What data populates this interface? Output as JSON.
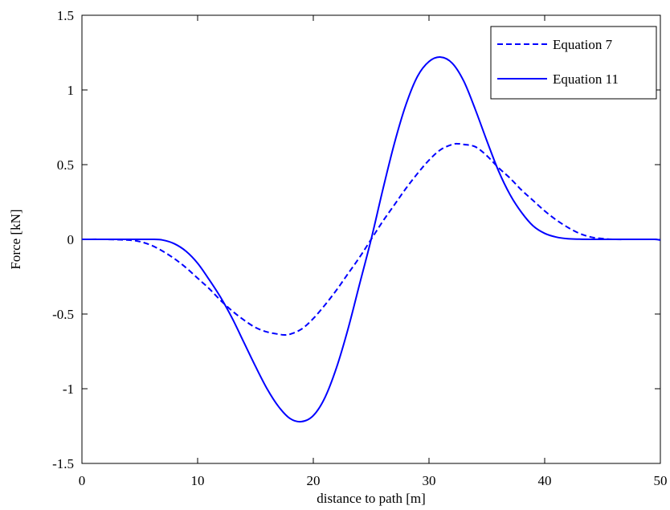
{
  "chart_data": {
    "type": "line",
    "title": "",
    "xlabel": "distance to path [m]",
    "ylabel": "Force [kN]",
    "xlim": [
      0,
      50
    ],
    "ylim": [
      -1.5,
      1.5
    ],
    "x_ticks": [
      0,
      10,
      20,
      30,
      40,
      50
    ],
    "x_tick_labels": [
      "0",
      "10",
      "20",
      "30",
      "40",
      "50"
    ],
    "y_ticks": [
      -1.5,
      -1,
      -0.5,
      0,
      0.5,
      1,
      1.5
    ],
    "y_tick_labels": [
      "-1.5",
      "-1",
      "-0.5",
      "0",
      "0.5",
      "1",
      "1.5"
    ],
    "grid": false,
    "legend_position": "top-right",
    "series_color": "#0000ff",
    "series": [
      {
        "name": "Equation 7",
        "style": "dashed",
        "x": [
          0,
          2,
          4,
          5,
          6,
          7,
          8,
          9,
          10,
          11,
          12,
          13,
          14,
          15,
          16,
          17,
          17.5,
          18,
          19,
          20,
          21,
          22,
          23,
          24,
          25,
          26,
          27,
          28,
          29,
          30,
          31,
          32,
          32.5,
          33,
          34,
          35,
          36,
          37,
          38,
          39,
          40,
          41,
          42,
          43,
          44,
          45,
          46,
          48,
          50
        ],
        "y": [
          0,
          0,
          -0.005,
          -0.015,
          -0.04,
          -0.08,
          -0.13,
          -0.19,
          -0.26,
          -0.33,
          -0.41,
          -0.48,
          -0.54,
          -0.59,
          -0.62,
          -0.635,
          -0.64,
          -0.635,
          -0.6,
          -0.53,
          -0.44,
          -0.34,
          -0.23,
          -0.12,
          0,
          0.12,
          0.23,
          0.34,
          0.44,
          0.53,
          0.6,
          0.635,
          0.64,
          0.635,
          0.62,
          0.56,
          0.48,
          0.41,
          0.33,
          0.26,
          0.19,
          0.13,
          0.08,
          0.04,
          0.015,
          0.005,
          0,
          0,
          0
        ]
      },
      {
        "name": "Equation 11",
        "style": "solid",
        "x": [
          0,
          2,
          4,
          6,
          7,
          8,
          9,
          10,
          11,
          12,
          13,
          14,
          15,
          16,
          17,
          18,
          19,
          20,
          21,
          22,
          23,
          24,
          25,
          26,
          27,
          28,
          29,
          30,
          31,
          32,
          33,
          34,
          35,
          36,
          37,
          38,
          39,
          40,
          41,
          42,
          43,
          44,
          46,
          48,
          49.5,
          50
        ],
        "y": [
          0,
          0,
          0,
          0,
          -0.005,
          -0.03,
          -0.08,
          -0.16,
          -0.27,
          -0.39,
          -0.53,
          -0.69,
          -0.85,
          -1.0,
          -1.12,
          -1.2,
          -1.22,
          -1.18,
          -1.06,
          -0.86,
          -0.6,
          -0.3,
          0,
          0.33,
          0.64,
          0.9,
          1.09,
          1.19,
          1.22,
          1.18,
          1.06,
          0.87,
          0.66,
          0.46,
          0.3,
          0.18,
          0.09,
          0.04,
          0.015,
          0.004,
          0.001,
          0,
          0,
          0,
          0,
          -0.005
        ]
      }
    ]
  }
}
